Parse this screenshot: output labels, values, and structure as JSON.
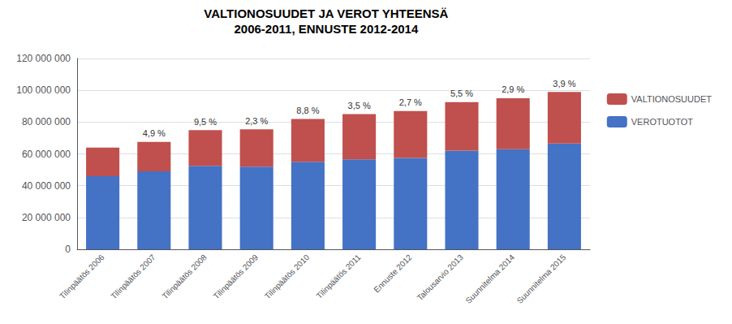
{
  "chart_data": {
    "type": "bar",
    "title": "VALTIONOSUUDET JA VEROT YHTEENSÄ",
    "subtitle": "2006-2011, ENNUSTE 2012-2014",
    "categories": [
      "Tilinpäätös 2006",
      "Tilinpäätös 2007",
      "Tilinpäätös 2008",
      "Tilinpäätös 2009",
      "Tilinpäätös 2010",
      "Tilinpäätös 2011",
      "Ennuste 2012",
      "Talousarvio 2013",
      "Suunnitelma 2014",
      "Suunnitelma 2015"
    ],
    "series": [
      {
        "name": "VEROTUOTOT",
        "color": "#4472C4",
        "values": [
          46000000,
          49000000,
          52500000,
          52000000,
          55000000,
          56500000,
          57500000,
          62000000,
          63000000,
          66500000
        ]
      },
      {
        "name": "VALTIONOSUUDET",
        "color": "#C0504D",
        "values": [
          18000000,
          18500000,
          22500000,
          23500000,
          27000000,
          28500000,
          29500000,
          30500000,
          32000000,
          32500000
        ]
      }
    ],
    "annotations": [
      {
        "x": "Tilinpäätös 2007",
        "text": "4,9 %"
      },
      {
        "x": "Tilinpäätös 2008",
        "text": "9,5 %"
      },
      {
        "x": "Tilinpäätös 2009",
        "text": "2,3 %"
      },
      {
        "x": "Tilinpäätös 2010",
        "text": "8,8 %"
      },
      {
        "x": "Tilinpäätös 2011",
        "text": "3,5 %"
      },
      {
        "x": "Ennuste 2012",
        "text": "2,7 %"
      },
      {
        "x": "Talousarvio 2013",
        "text": "5,5 %"
      },
      {
        "x": "Suunnitelma 2014",
        "text": "2,9 %"
      },
      {
        "x": "Suunnitelma 2015",
        "text": "3,9 %"
      }
    ],
    "stacked": true,
    "ylim": [
      0,
      120000000
    ],
    "yticks": [
      0,
      {
        "value": 20000000,
        "label": "20 000 000"
      },
      {
        "value": 40000000,
        "label": "40 000 000"
      },
      {
        "value": 60000000,
        "label": "60 000 000"
      },
      {
        "value": 80000000,
        "label": "80 000 000"
      },
      {
        "value": 100000000,
        "label": "100 000 000"
      },
      {
        "value": 120000000,
        "label": "120 000 000"
      }
    ],
    "grid": true,
    "legend": "right"
  }
}
